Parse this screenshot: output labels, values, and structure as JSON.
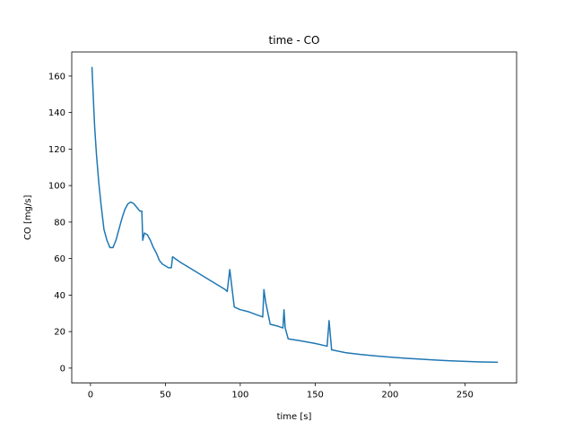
{
  "chart_data": {
    "type": "line",
    "title": "time - CO",
    "xlabel": "time [s]",
    "ylabel": "CO [mg/s]",
    "xlim": [
      -12.5,
      284.5
    ],
    "ylim": [
      -8.2,
      173.2
    ],
    "xticks": [
      0,
      50,
      100,
      150,
      200,
      250
    ],
    "yticks": [
      0,
      20,
      40,
      60,
      80,
      100,
      120,
      140,
      160
    ],
    "grid": false,
    "legend": "none",
    "series": [
      {
        "color": "#1f77b4",
        "x": [
          1,
          1.8,
          2.8,
          4,
          5.5,
          7,
          9,
          11,
          13,
          15,
          17,
          19,
          21,
          23,
          25,
          27,
          29,
          31,
          33,
          34.3,
          34.9,
          36,
          38,
          40,
          42,
          44,
          46,
          48,
          50,
          52,
          54,
          54.8,
          60,
          70,
          80,
          90,
          91.3,
          93,
          96,
          100,
          105,
          110,
          115,
          115.8,
          117,
          120,
          125,
          128.5,
          129.2,
          130,
          132,
          140,
          150,
          158,
          159.3,
          161,
          170,
          180,
          190,
          200,
          210,
          220,
          230,
          240,
          250,
          260,
          272
        ],
        "y": [
          165,
          150,
          132,
          117,
          102,
          90,
          76,
          70,
          66,
          66,
          70,
          76,
          82,
          87,
          90,
          91,
          90,
          88,
          86,
          86,
          70,
          74,
          73,
          70,
          66,
          63,
          59,
          57,
          56,
          55,
          55,
          61,
          58,
          53,
          48,
          43,
          42,
          54,
          33.5,
          32,
          31,
          29.5,
          28,
          43,
          36,
          24,
          23,
          22,
          32,
          22,
          16,
          15,
          13.5,
          12,
          26,
          10,
          8.5,
          7.5,
          6.7,
          6,
          5.4,
          4.9,
          4.4,
          4,
          3.7,
          3.4,
          3.2
        ]
      }
    ]
  }
}
